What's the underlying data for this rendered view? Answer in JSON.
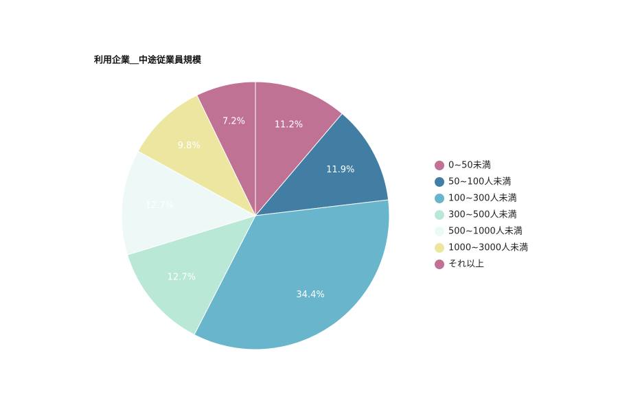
{
  "chart_data": {
    "type": "pie",
    "title": "利用企業＿中途従業員規模",
    "categories": [
      "0~50未満",
      "50~100人未満",
      "100~300人未満",
      "300~500人未満",
      "500~1000人未満",
      "1000~3000人未満",
      "それ以上"
    ],
    "values": [
      11.2,
      11.9,
      34.4,
      12.7,
      12.7,
      9.8,
      7.2
    ],
    "value_labels": [
      "11.2%",
      "11.9%",
      "34.4%",
      "12.7%",
      "12.7%",
      "9.8%",
      "7.2%"
    ],
    "colors": [
      "#c07295",
      "#427ea3",
      "#68b5cc",
      "#b9e8d6",
      "#edf8f7",
      "#ede6a0",
      "#c07295"
    ],
    "legend": "right"
  }
}
